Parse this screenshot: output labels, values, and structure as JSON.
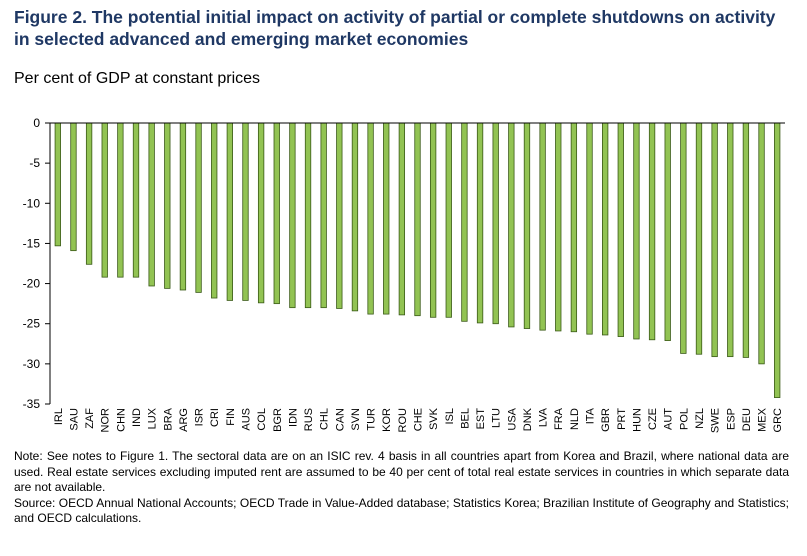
{
  "title": "Figure 2. The potential initial impact on activity of partial or complete shutdowns on activity in selected advanced and emerging market economies",
  "subtitle": "Per cent of GDP at constant prices",
  "note": "Note: See notes to Figure 1. The sectoral data are on an ISIC rev. 4 basis in all countries apart from Korea and Brazil, where national data are used. Real estate services excluding imputed rent are assumed to be 40 per cent of total real estate services in countries in which separate data are not available.",
  "source": "Source: OECD Annual National Accounts; OECD Trade in Value-Added database; Statistics Korea; Brazilian Institute of Geography and Statistics; and OECD calculations.",
  "chart_data": {
    "type": "bar",
    "title": "Figure 2. The potential initial impact on activity of partial or complete shutdowns on activity in selected advanced and emerging market economies",
    "ylabel": "Per cent of GDP at constant prices",
    "xlabel": "",
    "ylim": [
      -35,
      0
    ],
    "yticks": [
      0,
      -5,
      -10,
      -15,
      -20,
      -25,
      -30,
      -35
    ],
    "bar_color": "#92c353",
    "bar_edge_color": "#3a5a17",
    "categories": [
      "IRL",
      "SAU",
      "ZAF",
      "NOR",
      "CHN",
      "IND",
      "LUX",
      "BRA",
      "ARG",
      "ISR",
      "CRI",
      "FIN",
      "AUS",
      "COL",
      "BGR",
      "IDN",
      "RUS",
      "CHL",
      "CAN",
      "SVN",
      "TUR",
      "KOR",
      "ROU",
      "CHE",
      "SVK",
      "ISL",
      "BEL",
      "EST",
      "LTU",
      "USA",
      "DNK",
      "LVA",
      "FRA",
      "NLD",
      "ITA",
      "GBR",
      "PRT",
      "HUN",
      "CZE",
      "AUT",
      "POL",
      "NZL",
      "SWE",
      "ESP",
      "DEU",
      "MEX",
      "GRC"
    ],
    "values": [
      -15.3,
      -15.9,
      -17.6,
      -19.2,
      -19.2,
      -19.2,
      -20.3,
      -20.6,
      -20.8,
      -21.1,
      -21.8,
      -22.1,
      -22.1,
      -22.4,
      -22.5,
      -23.0,
      -23.0,
      -23.0,
      -23.1,
      -23.4,
      -23.8,
      -23.8,
      -23.9,
      -24.0,
      -24.2,
      -24.2,
      -24.7,
      -24.9,
      -25.0,
      -25.4,
      -25.6,
      -25.8,
      -25.9,
      -26.0,
      -26.3,
      -26.4,
      -26.6,
      -26.9,
      -27.0,
      -27.1,
      -28.7,
      -28.8,
      -29.1,
      -29.1,
      -29.2,
      -30.0,
      -34.2
    ]
  }
}
